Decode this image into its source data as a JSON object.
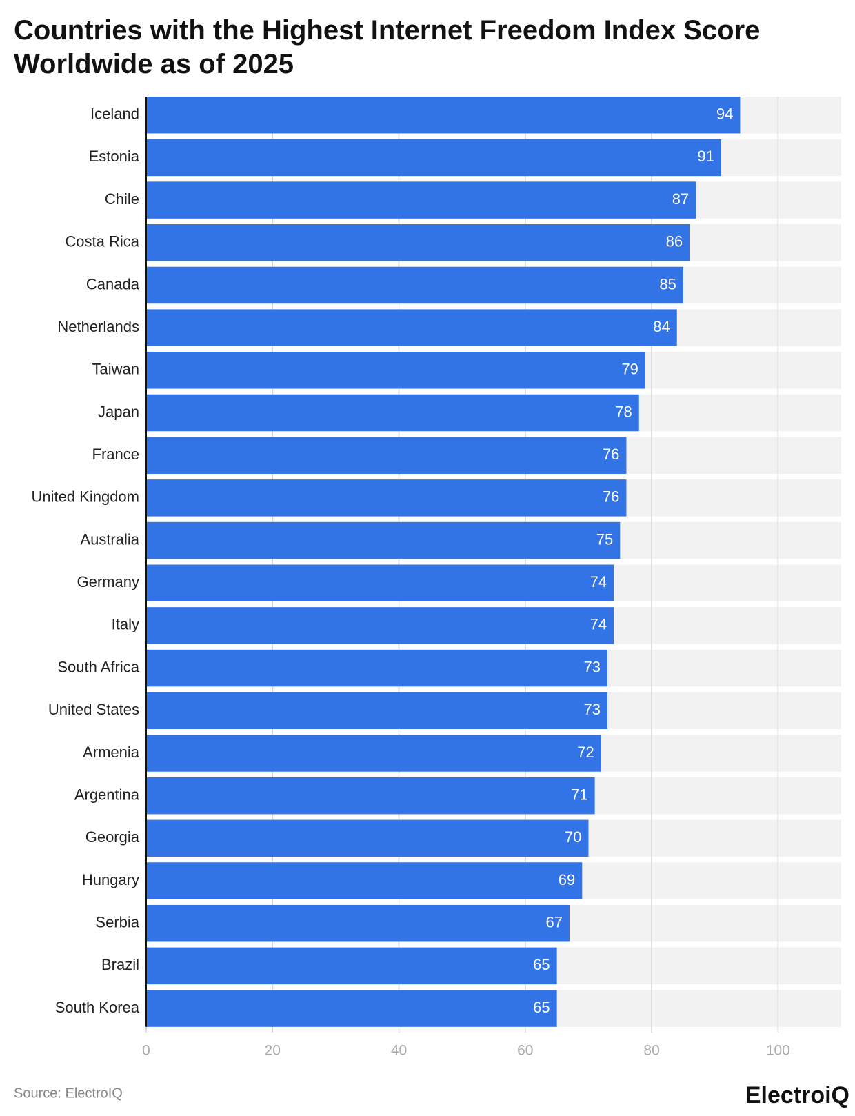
{
  "chart_data": {
    "type": "bar",
    "orientation": "horizontal",
    "title": "Countries with the Highest Internet Freedom Index Score Worldwide as of 2025",
    "categories": [
      "Iceland",
      "Estonia",
      "Chile",
      "Costa Rica",
      "Canada",
      "Netherlands",
      "Taiwan",
      "Japan",
      "France",
      "United Kingdom",
      "Australia",
      "Germany",
      "Italy",
      "South Africa",
      "United States",
      "Armenia",
      "Argentina",
      "Georgia",
      "Hungary",
      "Serbia",
      "Brazil",
      "South Korea"
    ],
    "values": [
      94,
      91,
      87,
      86,
      85,
      84,
      79,
      78,
      76,
      76,
      75,
      74,
      74,
      73,
      73,
      72,
      71,
      70,
      69,
      67,
      65,
      65
    ],
    "color": "#3273e6",
    "xlim": [
      0,
      110
    ],
    "xticks": [
      0,
      20,
      40,
      60,
      80,
      100
    ],
    "grid": true,
    "source": "Source: ElectroIQ",
    "logo": "ElectroiQ"
  }
}
